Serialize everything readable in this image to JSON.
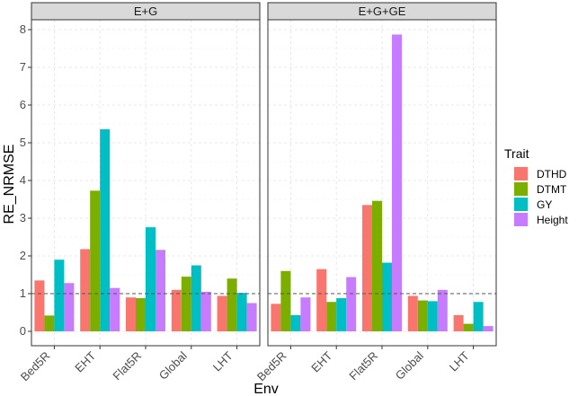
{
  "chart_data": {
    "type": "bar",
    "ylabel": "RE_NRMSE",
    "xlabel": "Env",
    "ylim": [
      0,
      8.3
    ],
    "yticks": [
      0,
      1,
      2,
      3,
      4,
      5,
      6,
      7,
      8
    ],
    "reference_line": 1,
    "legend": {
      "title": "Trait",
      "position": "right"
    },
    "panels": [
      {
        "strip": "E+G",
        "categories": [
          "Bed5R",
          "EHT",
          "Flat5R",
          "Global",
          "LHT"
        ],
        "series": [
          {
            "name": "DTHD",
            "color": "#F8766D",
            "values": [
              1.35,
              2.18,
              0.9,
              1.1,
              0.94
            ]
          },
          {
            "name": "DTMT",
            "color": "#7CAE00",
            "values": [
              0.42,
              3.73,
              0.88,
              1.45,
              1.4
            ]
          },
          {
            "name": "GY",
            "color": "#00BFC4",
            "values": [
              1.9,
              5.36,
              2.76,
              1.75,
              1.02
            ]
          },
          {
            "name": "Height",
            "color": "#C77CFF",
            "values": [
              1.28,
              1.15,
              2.16,
              1.05,
              0.75
            ]
          }
        ]
      },
      {
        "strip": "E+G+GE",
        "categories": [
          "Bed5R",
          "EHT",
          "Flat5R",
          "Global",
          "LHT"
        ],
        "series": [
          {
            "name": "DTHD",
            "color": "#F8766D",
            "values": [
              0.73,
              1.65,
              3.35,
              0.94,
              0.43
            ]
          },
          {
            "name": "DTMT",
            "color": "#7CAE00",
            "values": [
              1.6,
              0.78,
              3.46,
              0.82,
              0.2
            ]
          },
          {
            "name": "GY",
            "color": "#00BFC4",
            "values": [
              0.43,
              0.88,
              1.82,
              0.8,
              0.78
            ]
          },
          {
            "name": "Height",
            "color": "#C77CFF",
            "values": [
              0.9,
              1.44,
              7.87,
              1.1,
              0.14
            ]
          }
        ]
      }
    ]
  }
}
